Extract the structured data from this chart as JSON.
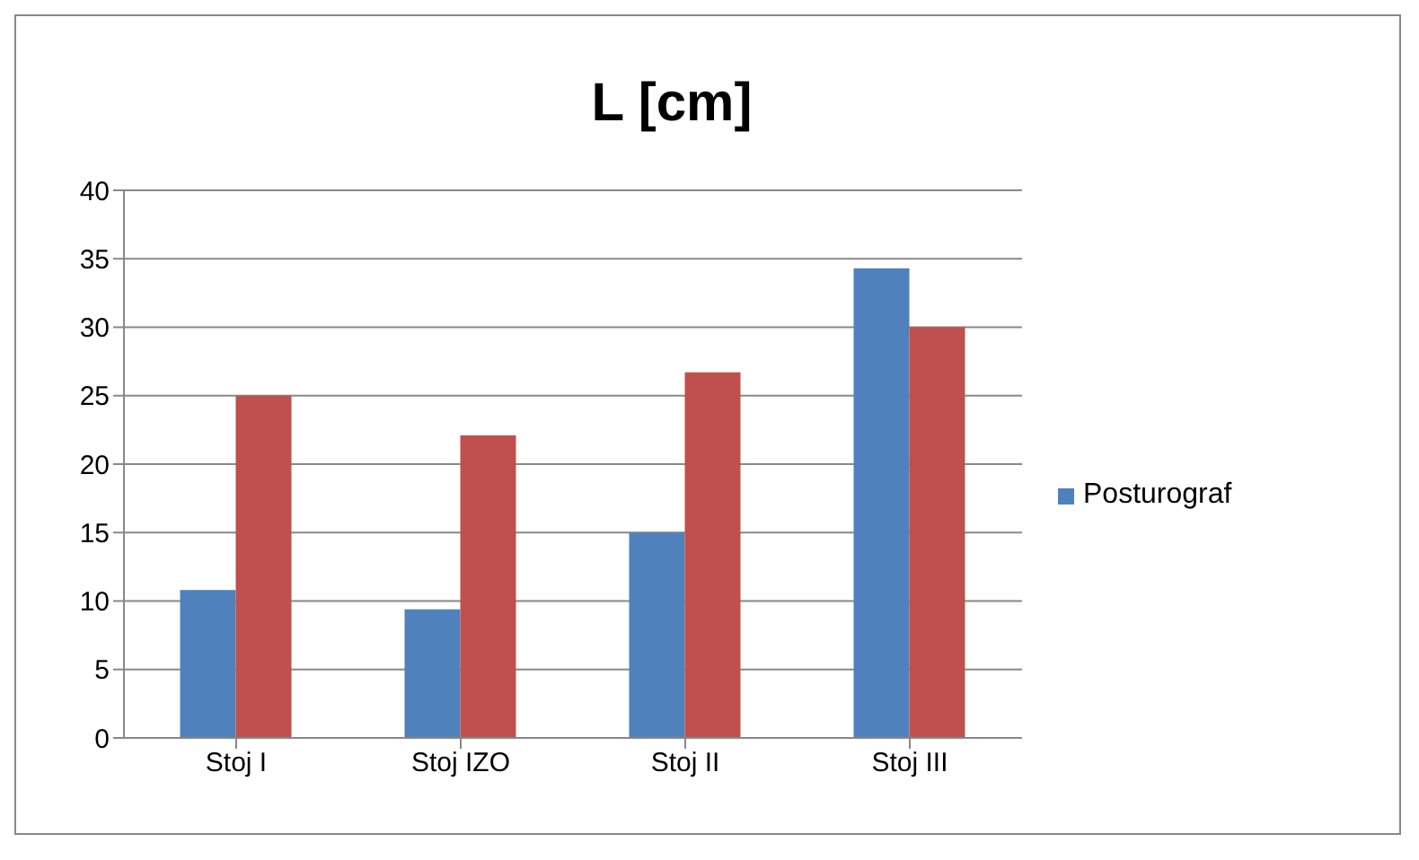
{
  "chart_data": {
    "type": "bar",
    "title": "L [cm]",
    "categories": [
      "Stoj I",
      "Stoj IZO",
      "Stoj II",
      "Stoj III"
    ],
    "series": [
      {
        "name": "Posturograf",
        "color": "#4f81bd",
        "values": [
          10.8,
          9.4,
          15,
          34.3
        ]
      },
      {
        "color": "#c0504d",
        "values": [
          25,
          22.1,
          26.7,
          30
        ]
      }
    ],
    "ylim": [
      0,
      40
    ],
    "yticks": [
      0,
      5,
      10,
      15,
      20,
      25,
      30,
      35,
      40
    ],
    "grid": "y",
    "legend": "right"
  }
}
